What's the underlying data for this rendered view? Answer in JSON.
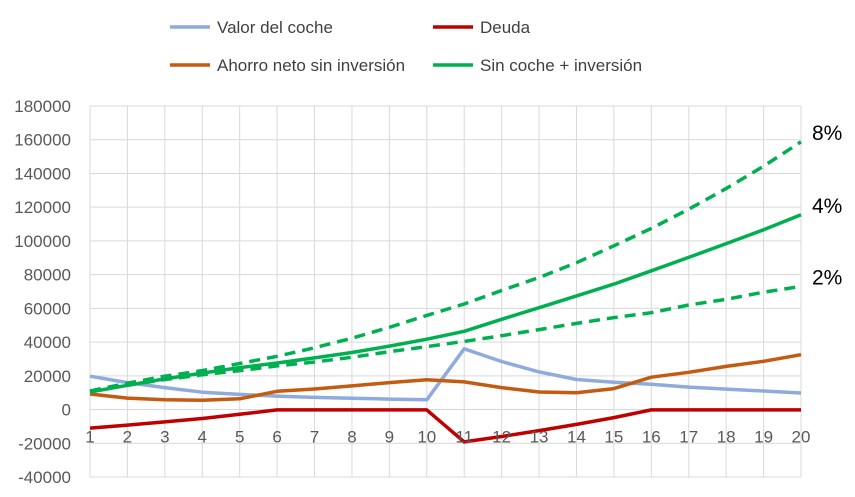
{
  "chart_data": {
    "type": "line",
    "x": [
      1,
      2,
      3,
      4,
      5,
      6,
      7,
      8,
      9,
      10,
      11,
      12,
      13,
      14,
      15,
      16,
      17,
      18,
      19,
      20
    ],
    "ylim": [
      -40000,
      180000
    ],
    "yticks": [
      180000,
      160000,
      140000,
      120000,
      100000,
      80000,
      60000,
      40000,
      20000,
      0,
      -20000,
      -40000
    ],
    "grid": true,
    "legend_position": "top",
    "series": [
      {
        "name": "Valor del coche",
        "color": "#8faadc",
        "style": "solid",
        "values": [
          19800,
          16000,
          13000,
          10300,
          9000,
          8000,
          7200,
          6700,
          6200,
          5800,
          36000,
          28500,
          22300,
          17800,
          16200,
          15000,
          13300,
          12100,
          11000,
          9800
        ]
      },
      {
        "name": "Deuda",
        "color": "#c00000",
        "style": "solid",
        "values": [
          -11000,
          -9200,
          -7300,
          -5300,
          -2800,
          -200,
          -200,
          -200,
          -200,
          -200,
          -19200,
          -16000,
          -12500,
          -8800,
          -4800,
          -200,
          -200,
          -200,
          -200,
          -200
        ]
      },
      {
        "name": "Ahorro neto sin inversión",
        "color": "#c55a11",
        "style": "solid",
        "values": [
          9200,
          6800,
          5800,
          5500,
          6400,
          10800,
          12200,
          14000,
          16000,
          17700,
          16400,
          13000,
          10400,
          10000,
          12400,
          19200,
          22100,
          25600,
          28600,
          32500
        ]
      },
      {
        "name": "Sin coche + inversión",
        "color": "#00b050",
        "style": "solid",
        "values": [
          10400,
          14400,
          18200,
          21600,
          24900,
          27600,
          30600,
          33800,
          37600,
          41700,
          46400,
          53500,
          60400,
          67400,
          74400,
          82300,
          90200,
          98400,
          106600,
          115500
        ]
      },
      {
        "name": "",
        "color": "#00b050",
        "style": "dashed",
        "values": [
          10800,
          14400,
          17800,
          20600,
          23100,
          25900,
          28200,
          31000,
          34300,
          37300,
          40400,
          43800,
          47400,
          51100,
          54500,
          57400,
          62000,
          65400,
          69600,
          73000
        ]
      },
      {
        "name": "",
        "color": "#00b050",
        "style": "dashed",
        "values": [
          11000,
          15600,
          19800,
          23100,
          27300,
          31600,
          36600,
          42300,
          48800,
          55800,
          62600,
          70600,
          78300,
          87100,
          97100,
          107400,
          118800,
          131100,
          144300,
          158800
        ]
      }
    ],
    "annotations": [
      {
        "text": "8%",
        "series_index": 5
      },
      {
        "text": "4%",
        "series_index": 3
      },
      {
        "text": "2%",
        "series_index": 4
      }
    ]
  }
}
